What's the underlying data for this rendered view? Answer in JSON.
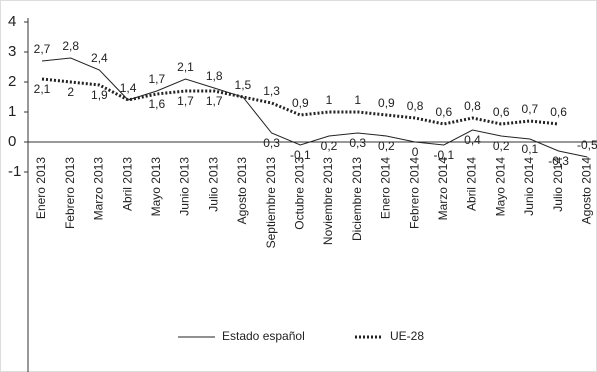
{
  "chart_data": {
    "type": "line",
    "categories": [
      "Enero 2013",
      "Febrero 2013",
      "Marzo 2013",
      "Abril 2013",
      "Mayo 2013",
      "Junio 2013",
      "Julio 2013",
      "Agosto 2013",
      "Septiembre 2013",
      "Octubre 2013",
      "Noviembre 2013",
      "Diciembre 2013",
      "Enero 2014",
      "Febrero 2014",
      "Marzo 2014",
      "Abril 2014",
      "Mayo 2014",
      "Junio 2014",
      "Julio 2014",
      "Agosto 2014"
    ],
    "series": [
      {
        "name": "Estado español",
        "color": "#222222",
        "style": "solid",
        "values": [
          2.7,
          2.8,
          2.4,
          1.4,
          1.7,
          2.1,
          1.8,
          1.5,
          0.3,
          -0.1,
          0.2,
          0.3,
          0.2,
          0,
          -0.1,
          0.4,
          0.2,
          0.1,
          -0.3,
          -0.5
        ],
        "value_labels": [
          "2,7",
          "2,8",
          "2,4",
          "1,4",
          "1,7",
          "2,1",
          "1,8",
          null,
          "0,3",
          "-0,1",
          "0,2",
          "0,3",
          "0,2",
          "0",
          "-0,1",
          "0,4",
          "0,2",
          "0,1",
          "-0,3",
          "-0,5"
        ]
      },
      {
        "name": "UE-28",
        "color": "#222222",
        "style": "dotted",
        "values": [
          2.1,
          2,
          1.9,
          1.4,
          1.6,
          1.7,
          1.7,
          1.5,
          1.3,
          0.9,
          1,
          1,
          0.9,
          0.8,
          0.6,
          0.8,
          0.6,
          0.7,
          0.6,
          null
        ],
        "value_labels": [
          "2,1",
          "2",
          "1,9",
          null,
          "1,6",
          "1,7",
          "1,7",
          "1,5",
          "1,3",
          "0,9",
          "1",
          "1",
          "0,9",
          "0,8",
          "0,6",
          "0,8",
          "0,6",
          "0,7",
          "0,6",
          null
        ]
      }
    ],
    "ylim": [
      -1,
      4
    ],
    "yticks": [
      -1,
      0,
      1,
      2,
      3,
      4
    ]
  }
}
